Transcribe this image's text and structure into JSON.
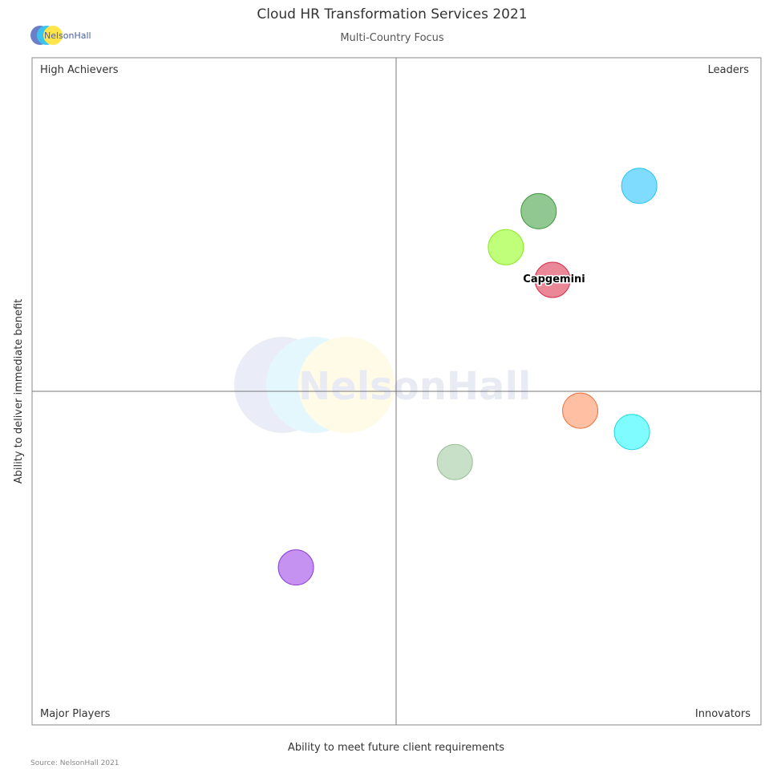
{
  "chart_data": {
    "type": "scatter",
    "title": "Cloud HR Transformation Services 2021",
    "subtitle": "Multi-Country Focus",
    "xlabel": "Ability to meet future client requirements",
    "ylabel": "Ability to deliver immediate benefit",
    "xlim": [
      0,
      10
    ],
    "ylim": [
      0,
      10
    ],
    "grid": false,
    "quadrants": {
      "top_left": "High Achievers",
      "top_right": "Leaders",
      "bottom_left": "Major Players",
      "bottom_right": "Innovators"
    },
    "points": [
      {
        "x": 8.33,
        "y": 8.08,
        "color": "#7fdcfe",
        "stroke": "#2cc4f6",
        "label": ""
      },
      {
        "x": 6.95,
        "y": 7.7,
        "color": "#91c791",
        "stroke": "#3e9a3e",
        "label": ""
      },
      {
        "x": 6.5,
        "y": 7.16,
        "color": "#bfff7a",
        "stroke": "#8ee82a",
        "label": ""
      },
      {
        "x": 7.14,
        "y": 6.67,
        "color": "#eb8898",
        "stroke": "#d8304e",
        "label": "Capgemini"
      },
      {
        "x": 7.52,
        "y": 4.71,
        "color": "#ffbfa3",
        "stroke": "#f0703c",
        "label": ""
      },
      {
        "x": 8.23,
        "y": 4.39,
        "color": "#7ffcff",
        "stroke": "#22d9e0",
        "label": ""
      },
      {
        "x": 5.8,
        "y": 3.94,
        "color": "#c8e0c8",
        "stroke": "#99c099",
        "label": ""
      },
      {
        "x": 3.62,
        "y": 2.36,
        "color": "#c592f2",
        "stroke": "#8a3fd6",
        "label": ""
      }
    ]
  },
  "logo": {
    "text": "NelsonHall"
  },
  "source": "Source: NelsonHall 2021"
}
